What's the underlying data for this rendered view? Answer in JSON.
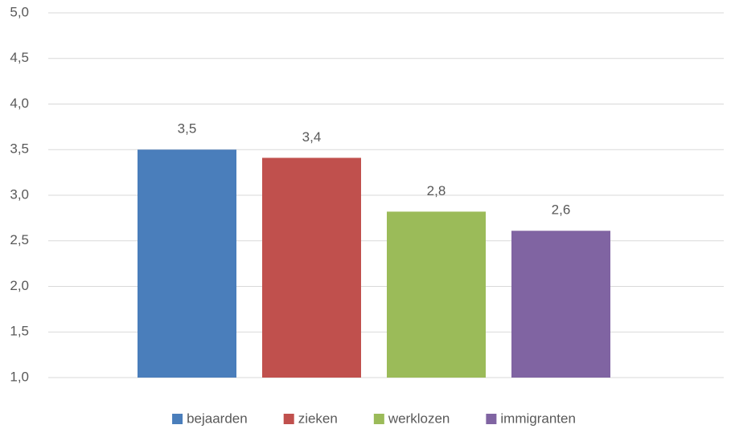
{
  "chart_data": {
    "type": "bar",
    "series": [
      {
        "name": "bejaarden",
        "color": "#4a7ebb",
        "values": [
          3.5
        ],
        "value_labels": [
          "3,5"
        ]
      },
      {
        "name": "zieken",
        "color": "#c0504d",
        "values": [
          3.41
        ],
        "value_labels": [
          "3,4"
        ]
      },
      {
        "name": "werklozen",
        "color": "#9bbb59",
        "values": [
          2.82
        ],
        "value_labels": [
          "2,8"
        ]
      },
      {
        "name": "immigranten",
        "color": "#8064a2",
        "values": [
          2.61
        ],
        "value_labels": [
          "2,6"
        ]
      }
    ],
    "ylim": [
      1.0,
      5.0
    ],
    "yticks": [
      {
        "value": 1.0,
        "label": "1,0"
      },
      {
        "value": 1.5,
        "label": "1,5"
      },
      {
        "value": 2.0,
        "label": "2,0"
      },
      {
        "value": 2.5,
        "label": "2,5"
      },
      {
        "value": 3.0,
        "label": "3,0"
      },
      {
        "value": 3.5,
        "label": "3,5"
      },
      {
        "value": 4.0,
        "label": "4,0"
      },
      {
        "value": 4.5,
        "label": "4,5"
      },
      {
        "value": 5.0,
        "label": "5,0"
      }
    ],
    "grid": true,
    "legend": "bottom"
  }
}
